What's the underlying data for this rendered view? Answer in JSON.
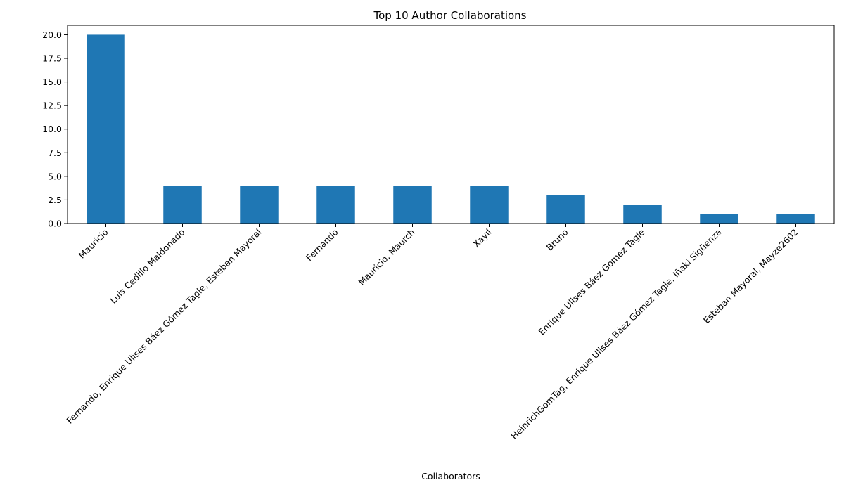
{
  "chart_data": {
    "type": "bar",
    "title": "Top 10 Author Collaborations",
    "xlabel": "Collaborators",
    "ylabel": "",
    "categories": [
      "Mauricio",
      "Luis Cedillo Maldonado",
      "Fernando, Enrique Ulises Báez Gómez Tagle, Esteban Mayoral",
      "Fernando",
      "Mauricio, Maurch",
      "Xayil",
      "Bruno",
      "Enrique Ulises Báez Gómez Tagle",
      "HeinrichGomTag, Enrique Ulises Báez Gómez Tagle, Iñaki Sigüenza",
      "Esteban Mayoral, Mayze2602"
    ],
    "values": [
      20,
      4,
      4,
      4,
      4,
      4,
      3,
      2,
      1,
      1
    ],
    "ylim": [
      0,
      21
    ],
    "yticks": [
      "0.0",
      "2.5",
      "5.0",
      "7.5",
      "10.0",
      "12.5",
      "15.0",
      "17.5",
      "20.0"
    ],
    "color": "#1f77b4",
    "grid": false,
    "legend": "none"
  }
}
